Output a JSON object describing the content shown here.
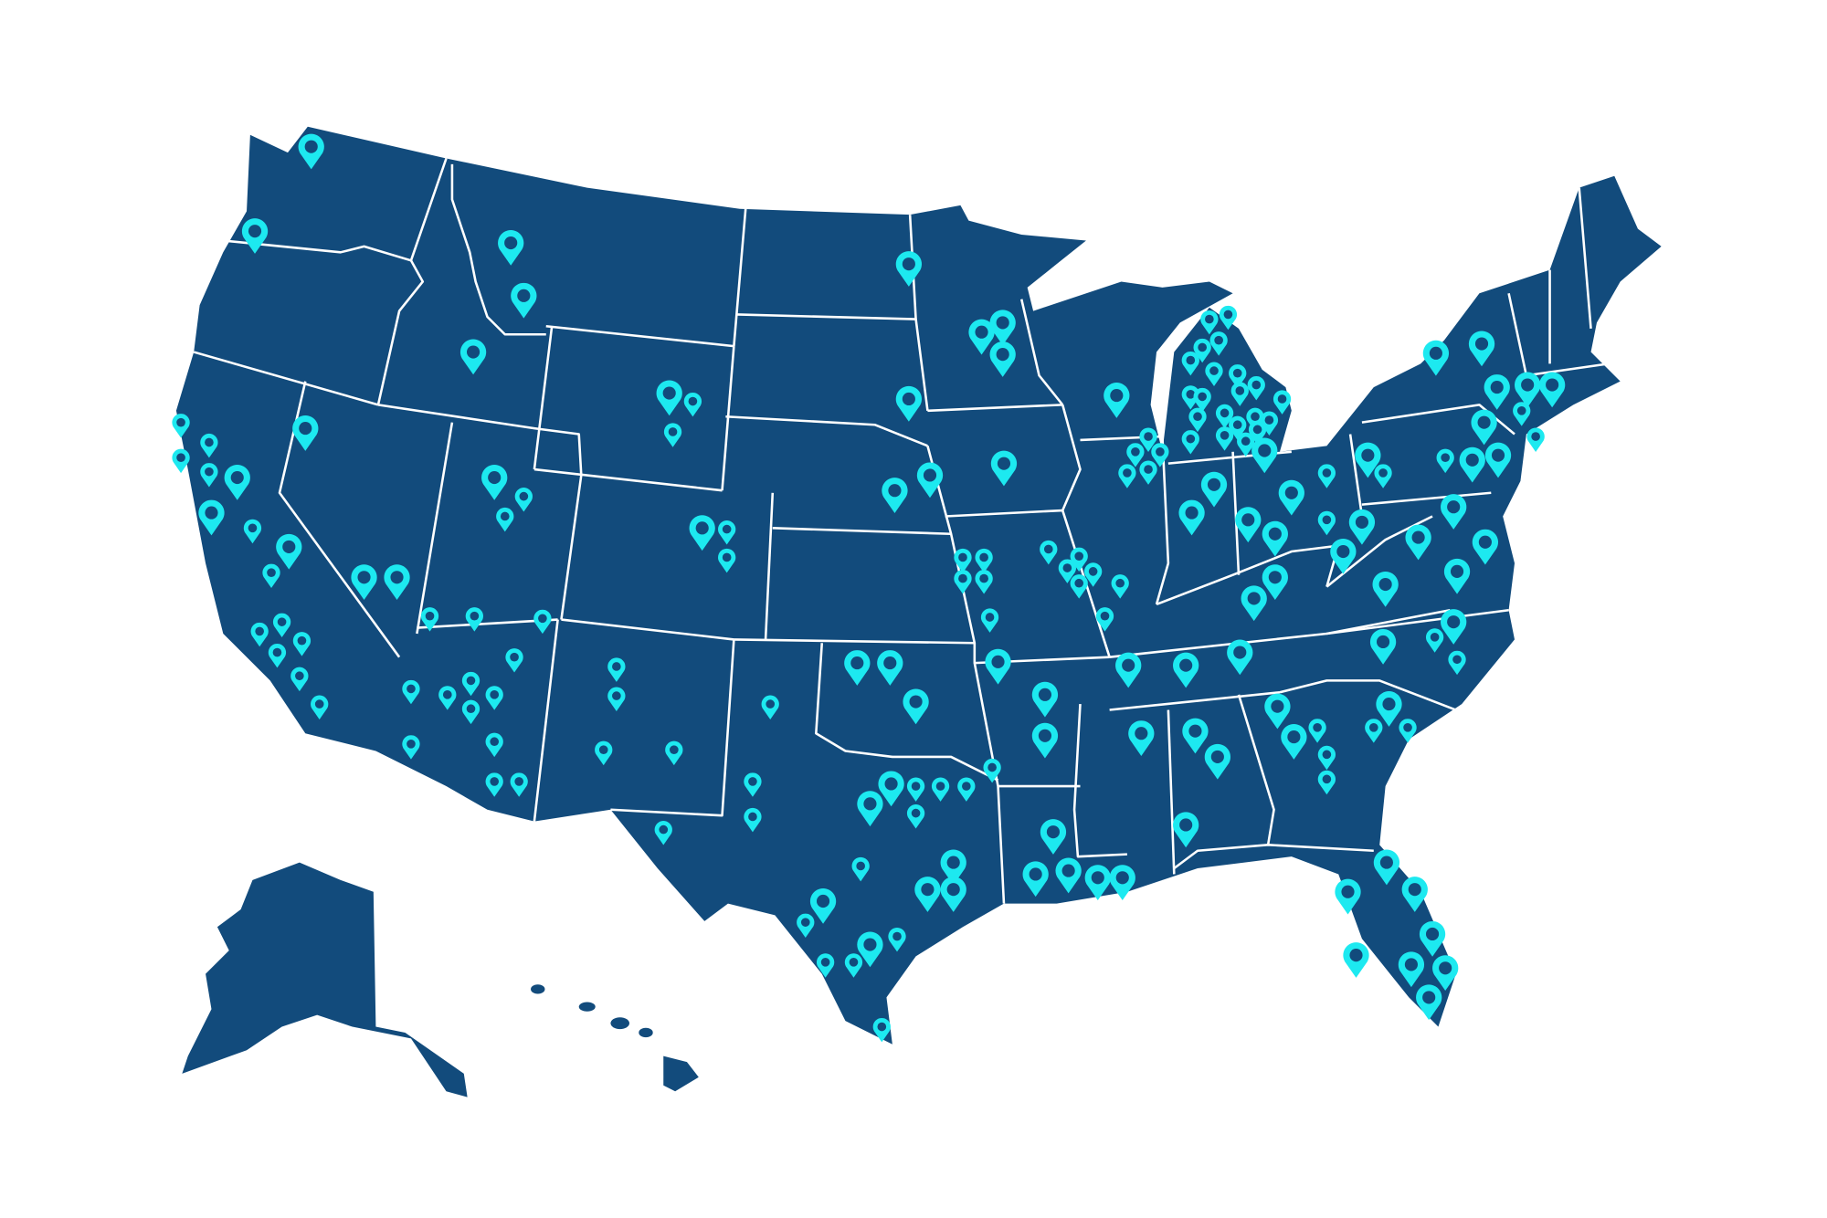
{
  "map": {
    "region": "United States",
    "background": "#ffffff",
    "fill": "#124b7c",
    "border_color": "#ffffff"
  },
  "markers": {
    "icon": "map-pin-icon",
    "color": "#1de9f0",
    "inner_color": "#124b7c"
  }
}
